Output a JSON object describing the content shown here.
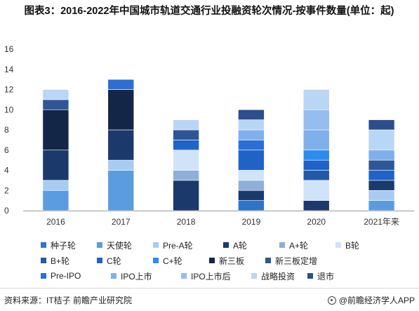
{
  "title": "图表3：2016-2022年中国城市轨道交通行业投融资轮次情况-按事件数量(单位：起)",
  "source": "资料来源：IT桔子 前瞻产业研究院",
  "brand": "@前瞻经济学人APP",
  "chart_data": {
    "type": "bar",
    "stacked": true,
    "categories": [
      "2016",
      "2017",
      "2018",
      "2019",
      "2020",
      "2021年来"
    ],
    "ylim": [
      0,
      16
    ],
    "yticks": [
      0,
      2,
      4,
      6,
      8,
      10,
      12,
      14,
      16
    ],
    "grid": false,
    "legend_position": "bottom",
    "series": [
      {
        "name": "种子轮",
        "color": "#2E75C9",
        "values": [
          0,
          0,
          0,
          1,
          0,
          0
        ]
      },
      {
        "name": "天使轮",
        "color": "#5B9BE0",
        "values": [
          2,
          4,
          0,
          0,
          0,
          1
        ]
      },
      {
        "name": "Pre-A轮",
        "color": "#A9CBF1",
        "values": [
          1,
          1,
          0,
          0,
          0,
          1
        ]
      },
      {
        "name": "A轮",
        "color": "#1B3A6B",
        "values": [
          3,
          3,
          3,
          1,
          1,
          1
        ]
      },
      {
        "name": "A+轮",
        "color": "#8EAFD9",
        "values": [
          0,
          0,
          1,
          1,
          0,
          0
        ]
      },
      {
        "name": "B轮",
        "color": "#D0E3F8",
        "values": [
          0,
          0,
          2,
          1,
          2,
          0
        ]
      },
      {
        "name": "B+轮",
        "color": "#2459A8",
        "values": [
          0,
          0,
          0,
          0,
          1,
          0
        ]
      },
      {
        "name": "C轮",
        "color": "#1F63C6",
        "values": [
          0,
          0,
          1,
          2,
          1,
          1
        ]
      },
      {
        "name": "C+轮",
        "color": "#2E8BF0",
        "values": [
          0,
          0,
          0,
          0,
          1,
          0
        ]
      },
      {
        "name": "新三板",
        "color": "#142648",
        "values": [
          4,
          4,
          0,
          0,
          0,
          0
        ]
      },
      {
        "name": "新三板定增",
        "color": "#2F5694",
        "values": [
          1,
          0,
          1,
          0,
          0,
          1
        ]
      },
      {
        "name": "Pre-IPO",
        "color": "#2B6FD6",
        "values": [
          0,
          1,
          0,
          1,
          0,
          0
        ]
      },
      {
        "name": "IPO上市",
        "color": "#7FB0EC",
        "values": [
          0,
          0,
          0,
          1,
          2,
          1
        ]
      },
      {
        "name": "IPO上市后",
        "color": "#95BDEF",
        "values": [
          0,
          0,
          0,
          0,
          2,
          0
        ]
      },
      {
        "name": "战略投资",
        "color": "#B9D6F6",
        "values": [
          1,
          0,
          1,
          1,
          2,
          2
        ]
      },
      {
        "name": "退市",
        "color": "#2C4E8C",
        "values": [
          0,
          0,
          0,
          1,
          0,
          1
        ]
      }
    ]
  }
}
